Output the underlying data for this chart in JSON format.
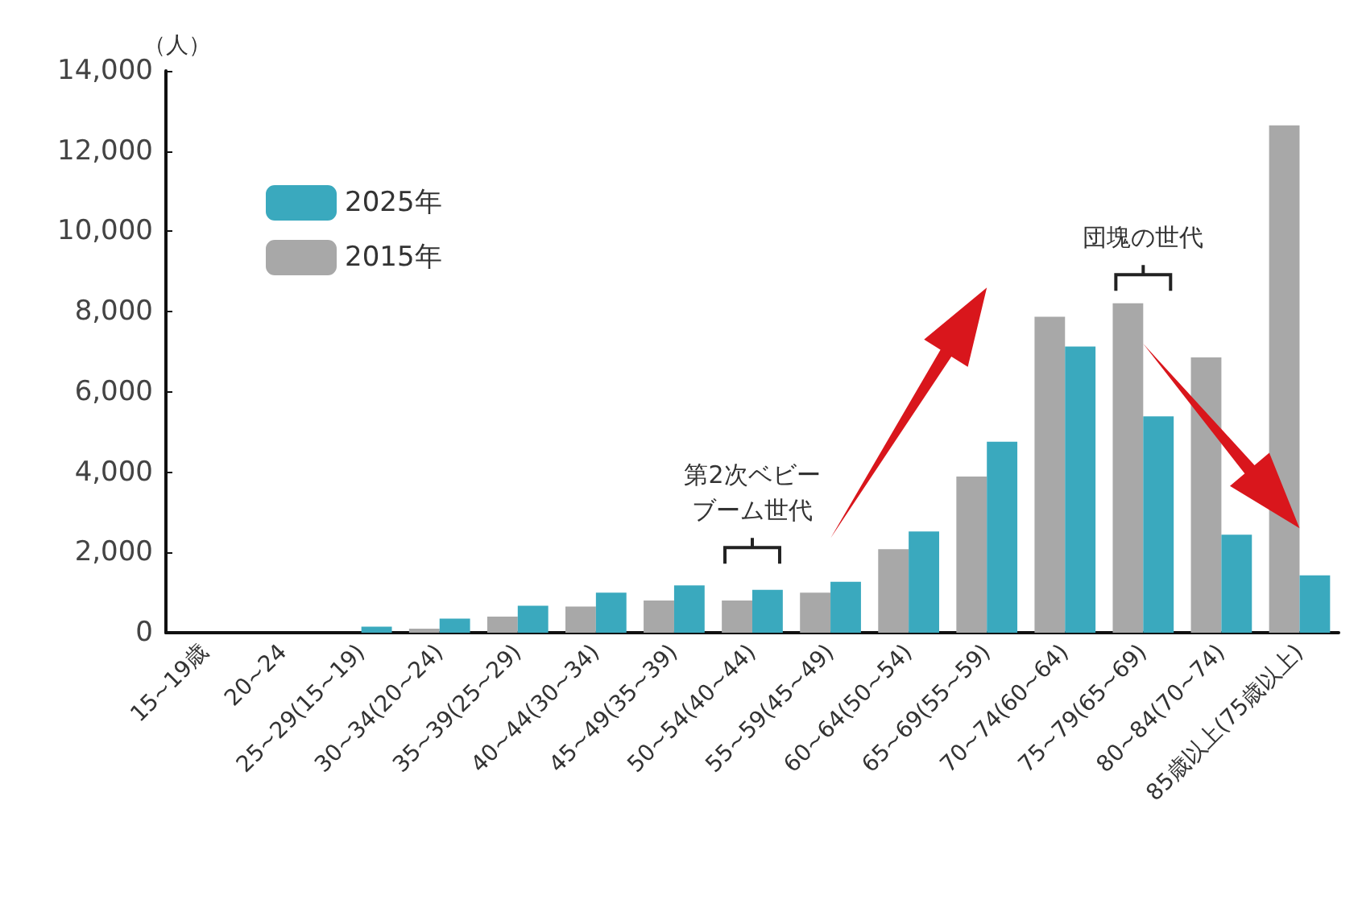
{
  "chart_data": {
    "type": "bar",
    "ylabel": "（人）",
    "categories": [
      "15~19歳",
      "20~24",
      "25~29(15~19)",
      "30~34(20~24)",
      "35~39(25~29)",
      "40~44(30~34)",
      "45~49(35~39)",
      "50~54(40~44)",
      "55~59(45~49)",
      "60~64(50~54)",
      "65~69(55~59)",
      "70~74(60~64)",
      "75~79(65~69)",
      "80~84(70~74)",
      "85歳以上(75歳以上)"
    ],
    "series": [
      {
        "name": "2015年",
        "color": "#a8a8a8",
        "values": [
          0,
          0,
          null,
          100,
          400,
          650,
          800,
          800,
          1000,
          2080,
          3890,
          7870,
          8210,
          6860,
          12640
        ]
      },
      {
        "name": "2025年",
        "color": "#3aa9be",
        "values": [
          0,
          0,
          150,
          350,
          670,
          1000,
          1180,
          1070,
          1270,
          2520,
          4760,
          7130,
          5390,
          2440,
          1430
        ]
      }
    ],
    "ylim": [
      0,
      14000
    ],
    "yticks": [
      {
        "value": 0,
        "label": "0"
      },
      {
        "value": 2000,
        "label": "2,000"
      },
      {
        "value": 4000,
        "label": "4,000"
      },
      {
        "value": 6000,
        "label": "6,000"
      },
      {
        "value": 8000,
        "label": "8,000"
      },
      {
        "value": 10000,
        "label": "10,000"
      },
      {
        "value": 12000,
        "label": "12,000"
      },
      {
        "value": 14000,
        "label": "14,000"
      }
    ],
    "grid": false,
    "legend": "top left",
    "annotations": [
      "第2次ベビーブーム世代",
      "団塊の世代"
    ]
  }
}
